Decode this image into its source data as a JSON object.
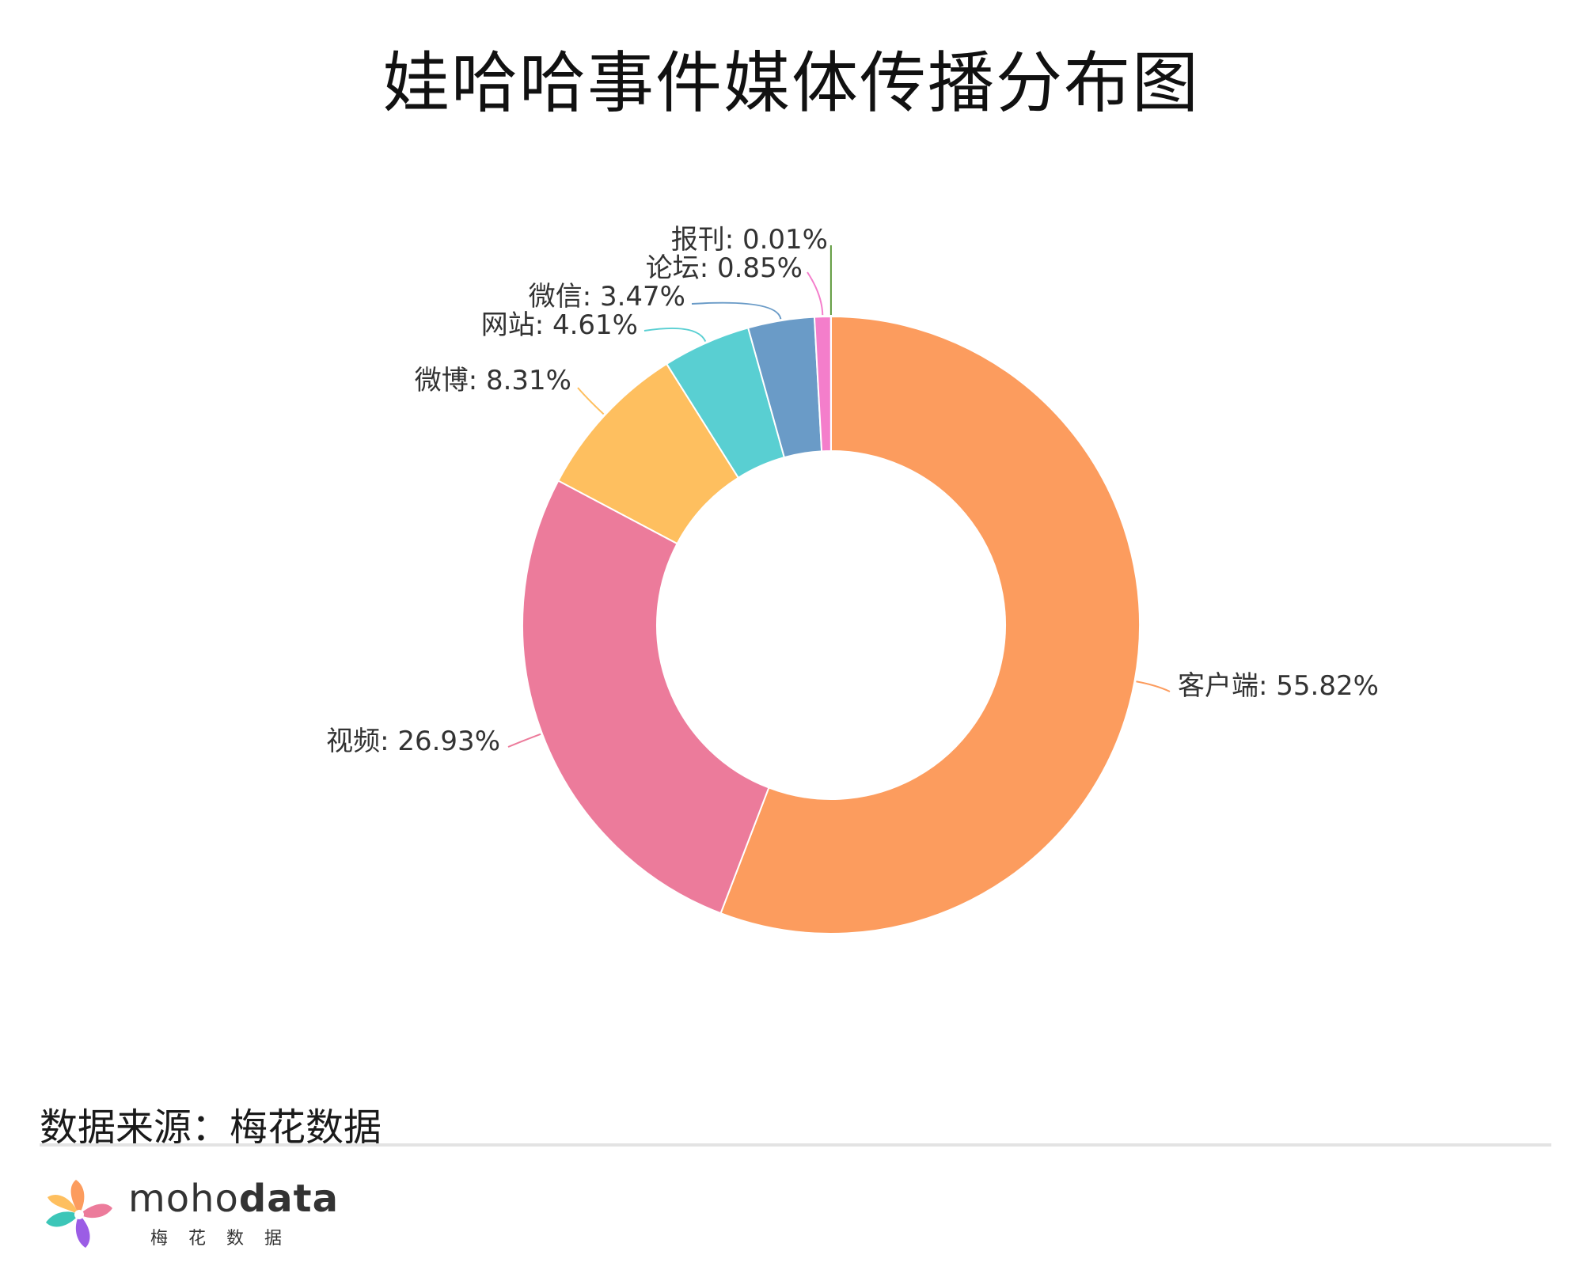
{
  "title": "娃哈哈事件媒体传播分布图",
  "source_label": "数据来源：梅花数据",
  "brand": {
    "name_light": "moho",
    "name_bold": "data",
    "sub": "梅花数据"
  },
  "chart_data": {
    "type": "pie",
    "donut": true,
    "series": [
      {
        "name": "客户端",
        "value": 55.82,
        "label": "客户端: 55.82%",
        "color": "#FC9C5E"
      },
      {
        "name": "视频",
        "value": 26.93,
        "label": "视频: 26.93%",
        "color": "#EC7B9B"
      },
      {
        "name": "微博",
        "value": 8.31,
        "label": "微博: 8.31%",
        "color": "#FEBF5F"
      },
      {
        "name": "网站",
        "value": 4.61,
        "label": "网站: 4.61%",
        "color": "#59CFD2"
      },
      {
        "name": "微信",
        "value": 3.47,
        "label": "微信: 3.47%",
        "color": "#6A9BC7"
      },
      {
        "name": "论坛",
        "value": 0.85,
        "label": "论坛: 0.85%",
        "color": "#F47ECB"
      },
      {
        "name": "报刊",
        "value": 0.01,
        "label": "报刊: 0.01%",
        "color": "#5E9A3C"
      }
    ]
  }
}
